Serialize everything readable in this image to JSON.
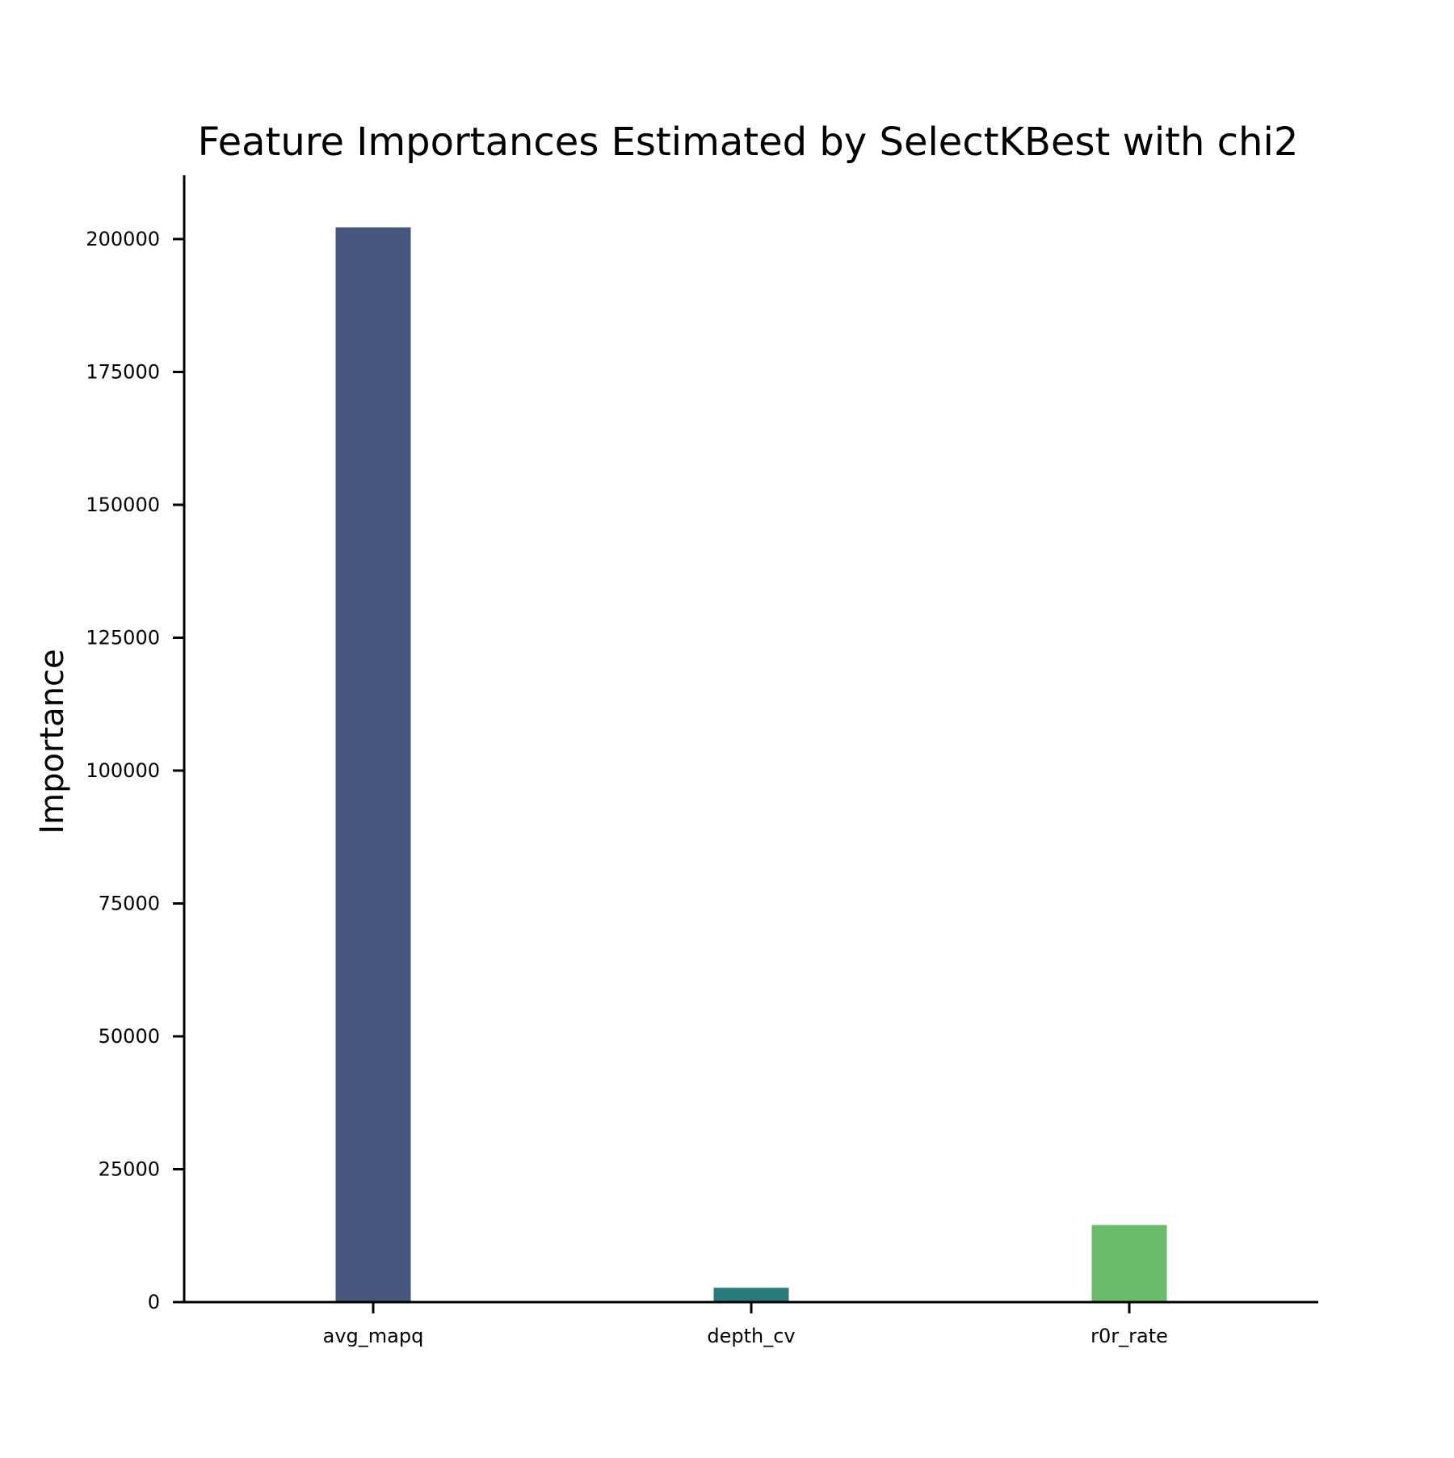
{
  "chart_data": {
    "type": "bar",
    "title": "Feature Importances Estimated by SelectKBest with chi2",
    "xlabel": "",
    "ylabel": "Importance",
    "categories": [
      "avg_mapq",
      "depth_cv",
      "r0r_rate"
    ],
    "values": [
      202200,
      2700,
      14500
    ],
    "colors": [
      "#46567d",
      "#2a7b78",
      "#6bbb6d"
    ],
    "ylim": [
      0,
      212000
    ],
    "yticks": [
      0,
      25000,
      50000,
      75000,
      100000,
      125000,
      150000,
      175000,
      200000
    ],
    "grid": false,
    "legend": "none"
  }
}
